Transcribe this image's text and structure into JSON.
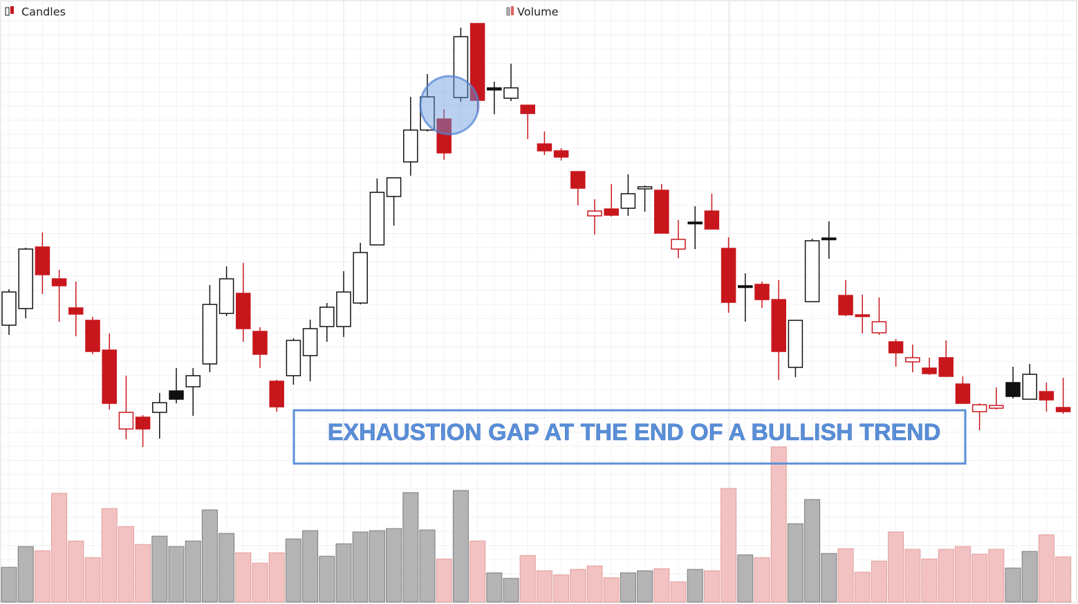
{
  "chart_data": {
    "type": "candlestick",
    "name": "Candles",
    "open": [
      41,
      43.4,
      52.3,
      47.7,
      43.5,
      41.7,
      37.4,
      26,
      27.7,
      28.4,
      31.5,
      32.1,
      35.4,
      42.7,
      45.6,
      40.1,
      32.9,
      33.7,
      36.6,
      40.8,
      40.8,
      44.2,
      52.6,
      59.6,
      64.6,
      69.2,
      70.8,
      73.9,
      84.6,
      75.3,
      73.8,
      72.8,
      67.2,
      66.2,
      63.2,
      56.8,
      57.8,
      57.9,
      60.7,
      60.5,
      52,
      55.9,
      57.5,
      52.1,
      46.7,
      46.9,
      44.7,
      34.9,
      44.4,
      53.6,
      45.3,
      42.5,
      39.9,
      38.6,
      35.7,
      34.8,
      36.3,
      32.5,
      28.5,
      29,
      32.7,
      30.3,
      31.4,
      29.1
    ],
    "high": [
      46.2,
      52.2,
      54.4,
      49,
      47.3,
      42.2,
      39.8,
      33.7,
      28,
      31.2,
      34.8,
      34.8,
      46.8,
      49.5,
      50,
      40.7,
      33.1,
      39.1,
      41.8,
      44.2,
      48.8,
      52.9,
      62.2,
      62.3,
      74,
      77.3,
      72.2,
      84,
      84.6,
      76.2,
      78.8,
      72.8,
      69,
      66.6,
      63.2,
      59.2,
      61.4,
      62.8,
      61.2,
      61.4,
      56.2,
      58.2,
      60,
      53.7,
      48.5,
      47.3,
      47.5,
      41.7,
      53.5,
      56,
      47.5,
      45.4,
      45,
      39,
      38.2,
      36.3,
      38.8,
      33.6,
      29.7,
      32,
      35,
      35.4,
      32.7,
      33.4
    ],
    "low": [
      39.6,
      42,
      45.5,
      41.5,
      39.4,
      36.8,
      28.8,
      24.5,
      23.4,
      24.6,
      29.7,
      27.9,
      34.2,
      42.3,
      38.6,
      34.8,
      28.5,
      32.4,
      32.9,
      38.6,
      39.3,
      44,
      52.6,
      55.4,
      62.6,
      69,
      64.9,
      73.3,
      71.7,
      71.5,
      73.4,
      67.9,
      65.6,
      64.8,
      58.3,
      54.1,
      56.7,
      56.8,
      57.4,
      54.3,
      50.7,
      52,
      54.9,
      42.8,
      41.5,
      43.5,
      33.1,
      33.5,
      44.4,
      50.6,
      42.3,
      39.8,
      39.6,
      35,
      34.2,
      33.8,
      33.6,
      29.7,
      25.8,
      28.8,
      30.4,
      30.3,
      28.5,
      28.2
    ],
    "close": [
      45.8,
      52,
      48.3,
      46.7,
      42.6,
      37.2,
      29.7,
      28.4,
      26,
      29.8,
      30.3,
      33.7,
      44,
      47.7,
      40.5,
      36.8,
      29.2,
      38.8,
      40.5,
      43.6,
      45.8,
      51.5,
      60.2,
      62.3,
      69.2,
      74,
      65.9,
      82.7,
      73.5,
      75,
      75.3,
      71.6,
      66.2,
      65.3,
      60.8,
      57.5,
      56.9,
      60,
      61,
      54.3,
      53.4,
      55.7,
      54.9,
      44.3,
      46.5,
      44.7,
      37.2,
      41.7,
      53.2,
      53.4,
      42.5,
      42.4,
      41.5,
      37,
      36.3,
      34,
      33.6,
      29.7,
      29.5,
      29.4,
      30.7,
      33.9,
      30.2,
      28.5
    ],
    "ylim": [
      23,
      85
    ],
    "colors": {
      "rise": "#111111",
      "fall": "#c8161d"
    },
    "grid": true,
    "volume": {
      "type": "bar",
      "name": "Volume",
      "values": [
        50,
        80,
        74,
        157,
        88,
        64,
        135,
        109,
        83,
        95,
        80,
        88,
        133,
        99,
        71,
        56,
        71,
        91,
        103,
        66,
        84,
        101,
        103,
        106,
        158,
        104,
        62,
        161,
        88,
        42,
        34,
        67,
        45,
        39,
        47,
        52,
        35,
        42,
        45,
        48,
        29,
        47,
        45,
        164,
        68,
        64,
        224,
        113,
        148,
        70,
        77,
        43,
        59,
        101,
        76,
        62,
        76,
        80,
        69,
        76,
        49,
        73,
        97,
        65
      ],
      "ylim": [
        0,
        230
      ],
      "colors": {
        "rise": "#b4b4b4",
        "fall": "#f2c2c2"
      }
    },
    "annotation": "EXHAUSTION GAP AT THE END OF A BULLISH TREND"
  }
}
